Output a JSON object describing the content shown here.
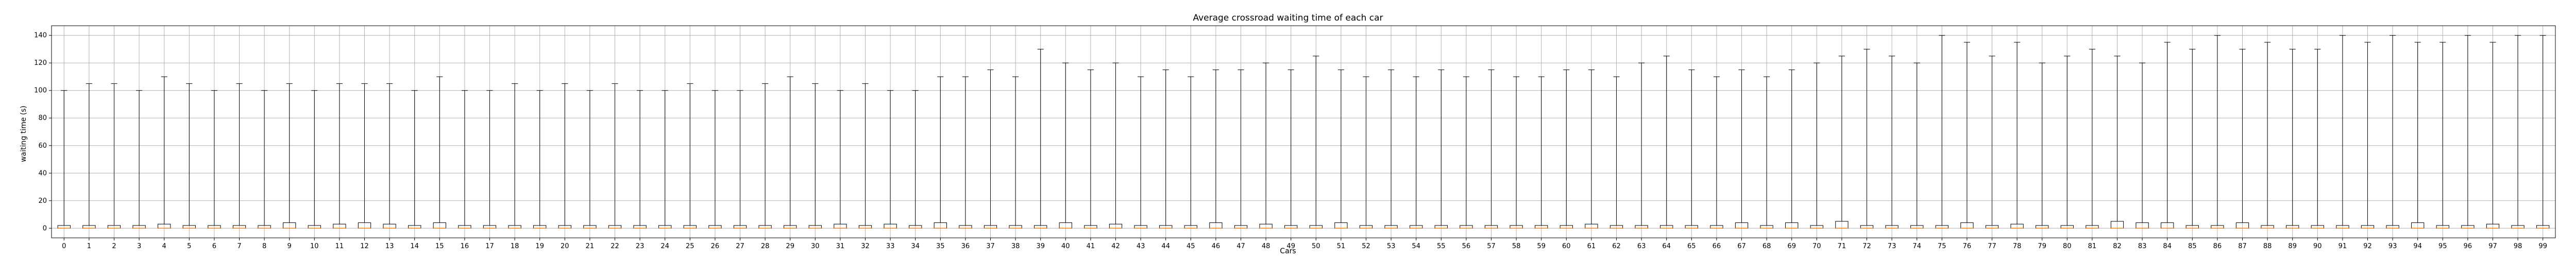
{
  "chart_data": {
    "type": "box",
    "title": "Average crossroad waiting time of each car",
    "xlabel": "Cars",
    "ylabel": "waiting time (s)",
    "ylim": [
      -7,
      147
    ],
    "yticks": [
      0,
      20,
      40,
      60,
      80,
      100,
      120,
      140
    ],
    "grid": true,
    "categories": [
      "0",
      "1",
      "2",
      "3",
      "4",
      "5",
      "6",
      "7",
      "8",
      "9",
      "10",
      "11",
      "12",
      "13",
      "14",
      "15",
      "16",
      "17",
      "18",
      "19",
      "20",
      "21",
      "22",
      "23",
      "24",
      "25",
      "26",
      "27",
      "28",
      "29",
      "30",
      "31",
      "32",
      "33",
      "34",
      "35",
      "36",
      "37",
      "38",
      "39",
      "40",
      "41",
      "42",
      "43",
      "44",
      "45",
      "46",
      "47",
      "48",
      "49",
      "50",
      "51",
      "52",
      "53",
      "54",
      "55",
      "56",
      "57",
      "58",
      "59",
      "60",
      "61",
      "62",
      "63",
      "64",
      "65",
      "66",
      "67",
      "68",
      "69",
      "70",
      "71",
      "72",
      "73",
      "74",
      "75",
      "76",
      "77",
      "78",
      "79",
      "80",
      "81",
      "82",
      "83",
      "84",
      "85",
      "86",
      "87",
      "88",
      "89",
      "90",
      "91",
      "92",
      "93",
      "94",
      "95",
      "96",
      "97",
      "98",
      "99"
    ],
    "box_q1": [
      0,
      0,
      0,
      0,
      0,
      0,
      0,
      0,
      0,
      0,
      0,
      0,
      0,
      0,
      0,
      0,
      0,
      0,
      0,
      0,
      0,
      0,
      0,
      0,
      0,
      0,
      0,
      0,
      0,
      0,
      0,
      0,
      0,
      0,
      0,
      0,
      0,
      0,
      0,
      0,
      0,
      0,
      0,
      0,
      0,
      0,
      0,
      0,
      0,
      0,
      0,
      0,
      0,
      0,
      0,
      0,
      0,
      0,
      0,
      0,
      0,
      0,
      0,
      0,
      0,
      0,
      0,
      0,
      0,
      0,
      0,
      0,
      0,
      0,
      0,
      0,
      0,
      0,
      0,
      0,
      0,
      0,
      0,
      0,
      0,
      0,
      0,
      0,
      0,
      0,
      0,
      0,
      0,
      0,
      0,
      0,
      0,
      0,
      0,
      0
    ],
    "box_q3": [
      2,
      2,
      2,
      2,
      3,
      2,
      2,
      2,
      2,
      4,
      2,
      3,
      4,
      3,
      2,
      4,
      2,
      2,
      2,
      2,
      2,
      2,
      2,
      2,
      2,
      2,
      2,
      2,
      2,
      2,
      2,
      3,
      2,
      3,
      2,
      4,
      2,
      2,
      2,
      2,
      4,
      2,
      3,
      2,
      2,
      2,
      4,
      2,
      3,
      2,
      2,
      4,
      2,
      2,
      2,
      2,
      2,
      2,
      2,
      2,
      2,
      3,
      2,
      2,
      2,
      2,
      2,
      4,
      2,
      4,
      2,
      5,
      2,
      2,
      2,
      2,
      4,
      2,
      3,
      2,
      2,
      2,
      5,
      4,
      4,
      2,
      2,
      4,
      2,
      2,
      2,
      2,
      2,
      2,
      4,
      2,
      2,
      3,
      2,
      2
    ],
    "median": [
      0,
      0,
      0,
      0,
      0,
      0,
      0,
      0,
      0,
      0,
      0,
      0,
      0,
      0,
      0,
      0,
      0,
      0,
      0,
      0,
      0,
      0,
      0,
      0,
      0,
      0,
      0,
      0,
      0,
      0,
      0,
      0,
      0,
      0,
      0,
      0,
      0,
      0,
      0,
      0,
      0,
      0,
      0,
      0,
      0,
      0,
      0,
      0,
      0,
      0,
      0,
      0,
      0,
      0,
      0,
      0,
      0,
      0,
      0,
      0,
      0,
      0,
      0,
      0,
      0,
      0,
      0,
      0,
      0,
      0,
      0,
      0,
      0,
      0,
      0,
      0,
      0,
      0,
      0,
      0,
      0,
      0,
      0,
      0,
      0,
      0,
      0,
      0,
      0,
      0,
      0,
      0,
      0,
      0,
      0,
      0,
      0,
      0,
      0,
      0
    ],
    "whisker_low": [
      0,
      0,
      0,
      0,
      0,
      0,
      0,
      0,
      0,
      0,
      0,
      0,
      0,
      0,
      0,
      0,
      0,
      0,
      0,
      0,
      0,
      0,
      0,
      0,
      0,
      0,
      0,
      0,
      0,
      0,
      0,
      0,
      0,
      0,
      0,
      0,
      0,
      0,
      0,
      0,
      0,
      0,
      0,
      0,
      0,
      0,
      0,
      0,
      0,
      0,
      0,
      0,
      0,
      0,
      0,
      0,
      0,
      0,
      0,
      0,
      0,
      0,
      0,
      0,
      0,
      0,
      0,
      0,
      0,
      0,
      0,
      0,
      0,
      0,
      0,
      0,
      0,
      0,
      0,
      0,
      0,
      0,
      0,
      0,
      0,
      0,
      0,
      0,
      0,
      0,
      0,
      0,
      0,
      0,
      0,
      0,
      0,
      0,
      0,
      0
    ],
    "whisker_high": [
      100,
      105,
      105,
      100,
      110,
      105,
      100,
      105,
      100,
      105,
      100,
      105,
      105,
      105,
      100,
      110,
      100,
      100,
      105,
      100,
      105,
      100,
      105,
      100,
      100,
      105,
      100,
      100,
      105,
      110,
      105,
      100,
      105,
      100,
      100,
      110,
      110,
      115,
      110,
      130,
      120,
      115,
      120,
      110,
      115,
      110,
      115,
      115,
      120,
      115,
      125,
      115,
      110,
      115,
      110,
      115,
      110,
      115,
      110,
      110,
      115,
      115,
      110,
      120,
      125,
      115,
      110,
      115,
      110,
      115,
      120,
      125,
      130,
      125,
      120,
      140,
      135,
      125,
      135,
      120,
      125,
      130,
      125,
      120,
      135,
      130,
      140,
      130,
      135,
      130,
      130,
      140,
      135,
      140,
      135,
      135,
      140,
      135,
      140,
      140
    ],
    "colors": {
      "box_edge": "#000000",
      "median": "#ff7f0e",
      "grid": "#b0b0b0",
      "axes": "#000000"
    }
  }
}
